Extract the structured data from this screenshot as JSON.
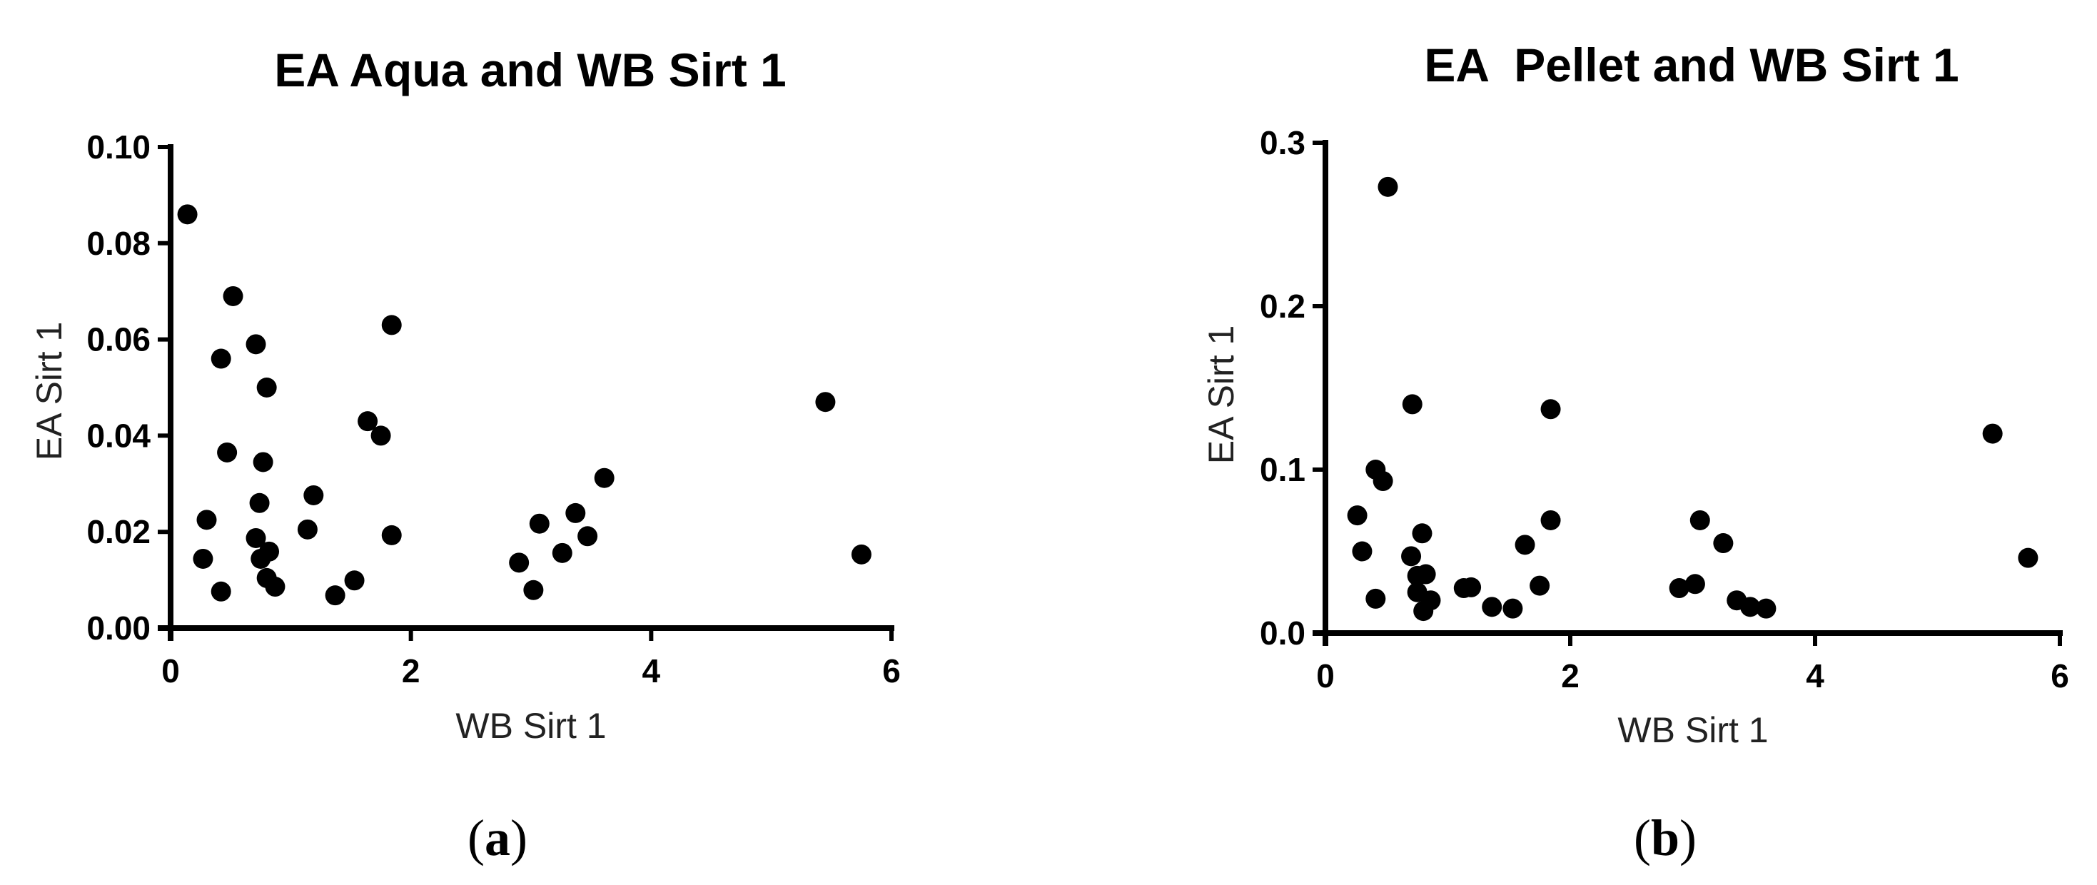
{
  "figure": {
    "background": "#ffffff",
    "ink_color": "#000000"
  },
  "chart_data": [
    {
      "type": "scatter",
      "panel": "(a)",
      "panel_letter": "a",
      "title": "EA Aqua and WB Sirt 1",
      "xlabel": "WB Sirt 1",
      "ylabel": "EA Sirt 1",
      "xlim": [
        0,
        6
      ],
      "ylim": [
        0,
        0.1
      ],
      "xticks": [
        0,
        2,
        4,
        6
      ],
      "xtick_labels": [
        "0",
        "2",
        "4",
        "6"
      ],
      "yticks": [
        0,
        0.02,
        0.04,
        0.06,
        0.08,
        0.1
      ],
      "ytick_labels": [
        "0.00",
        "0.02",
        "0.04",
        "0.06",
        "0.08",
        "0.10"
      ],
      "grid": false,
      "legend": null,
      "marker": "filled-circle",
      "series": [
        {
          "name": "EA Aqua vs WB Sirt 1",
          "points": [
            [
              0.14,
              0.086
            ],
            [
              0.52,
              0.069
            ],
            [
              1.84,
              0.063
            ],
            [
              0.71,
              0.059
            ],
            [
              0.42,
              0.056
            ],
            [
              0.8,
              0.05
            ],
            [
              1.64,
              0.043
            ],
            [
              1.75,
              0.04
            ],
            [
              0.47,
              0.0365
            ],
            [
              0.77,
              0.0345
            ],
            [
              1.19,
              0.0276
            ],
            [
              0.74,
              0.026
            ],
            [
              0.3,
              0.0225
            ],
            [
              1.14,
              0.0205
            ],
            [
              1.84,
              0.0193
            ],
            [
              0.71,
              0.0187
            ],
            [
              0.82,
              0.0159
            ],
            [
              0.75,
              0.0144
            ],
            [
              0.27,
              0.0144
            ],
            [
              0.8,
              0.0104
            ],
            [
              0.87,
              0.0086
            ],
            [
              1.53,
              0.0099
            ],
            [
              1.37,
              0.0068
            ],
            [
              0.42,
              0.0076
            ],
            [
              3.61,
              0.0312
            ],
            [
              3.37,
              0.0239
            ],
            [
              3.47,
              0.0191
            ],
            [
              3.26,
              0.0156
            ],
            [
              3.07,
              0.0217
            ],
            [
              2.9,
              0.0136
            ],
            [
              3.02,
              0.0079
            ],
            [
              5.45,
              0.047
            ],
            [
              5.75,
              0.0153
            ]
          ]
        }
      ]
    },
    {
      "type": "scatter",
      "panel": "(b)",
      "panel_letter": "b",
      "title": "EA  Pellet and WB Sirt 1",
      "xlabel": "WB Sirt 1",
      "ylabel": "EA Sirt 1",
      "xlim": [
        0,
        6
      ],
      "ylim": [
        0,
        0.3
      ],
      "xticks": [
        0,
        2,
        4,
        6
      ],
      "xtick_labels": [
        "0",
        "2",
        "4",
        "6"
      ],
      "yticks": [
        0,
        0.1,
        0.2,
        0.3
      ],
      "ytick_labels": [
        "0.0",
        "0.1",
        "0.2",
        "0.3"
      ],
      "grid": false,
      "legend": null,
      "marker": "filled-circle",
      "series": [
        {
          "name": "EA Pellet vs WB Sirt 1",
          "points": [
            [
              0.51,
              0.273
            ],
            [
              0.71,
              0.14
            ],
            [
              1.84,
              0.137
            ],
            [
              0.41,
              0.1
            ],
            [
              0.47,
              0.093
            ],
            [
              0.26,
              0.072
            ],
            [
              1.84,
              0.069
            ],
            [
              0.79,
              0.061
            ],
            [
              1.63,
              0.054
            ],
            [
              0.3,
              0.05
            ],
            [
              0.7,
              0.047
            ],
            [
              0.75,
              0.035
            ],
            [
              0.82,
              0.036
            ],
            [
              0.75,
              0.025
            ],
            [
              1.75,
              0.029
            ],
            [
              1.13,
              0.0275
            ],
            [
              1.19,
              0.028
            ],
            [
              0.86,
              0.02
            ],
            [
              0.8,
              0.0135
            ],
            [
              0.41,
              0.021
            ],
            [
              1.36,
              0.016
            ],
            [
              1.53,
              0.015
            ],
            [
              3.06,
              0.069
            ],
            [
              3.25,
              0.055
            ],
            [
              2.89,
              0.0275
            ],
            [
              3.02,
              0.03
            ],
            [
              3.36,
              0.02
            ],
            [
              3.47,
              0.016
            ],
            [
              3.6,
              0.015
            ],
            [
              5.45,
              0.122
            ],
            [
              5.74,
              0.046
            ]
          ]
        }
      ]
    }
  ]
}
